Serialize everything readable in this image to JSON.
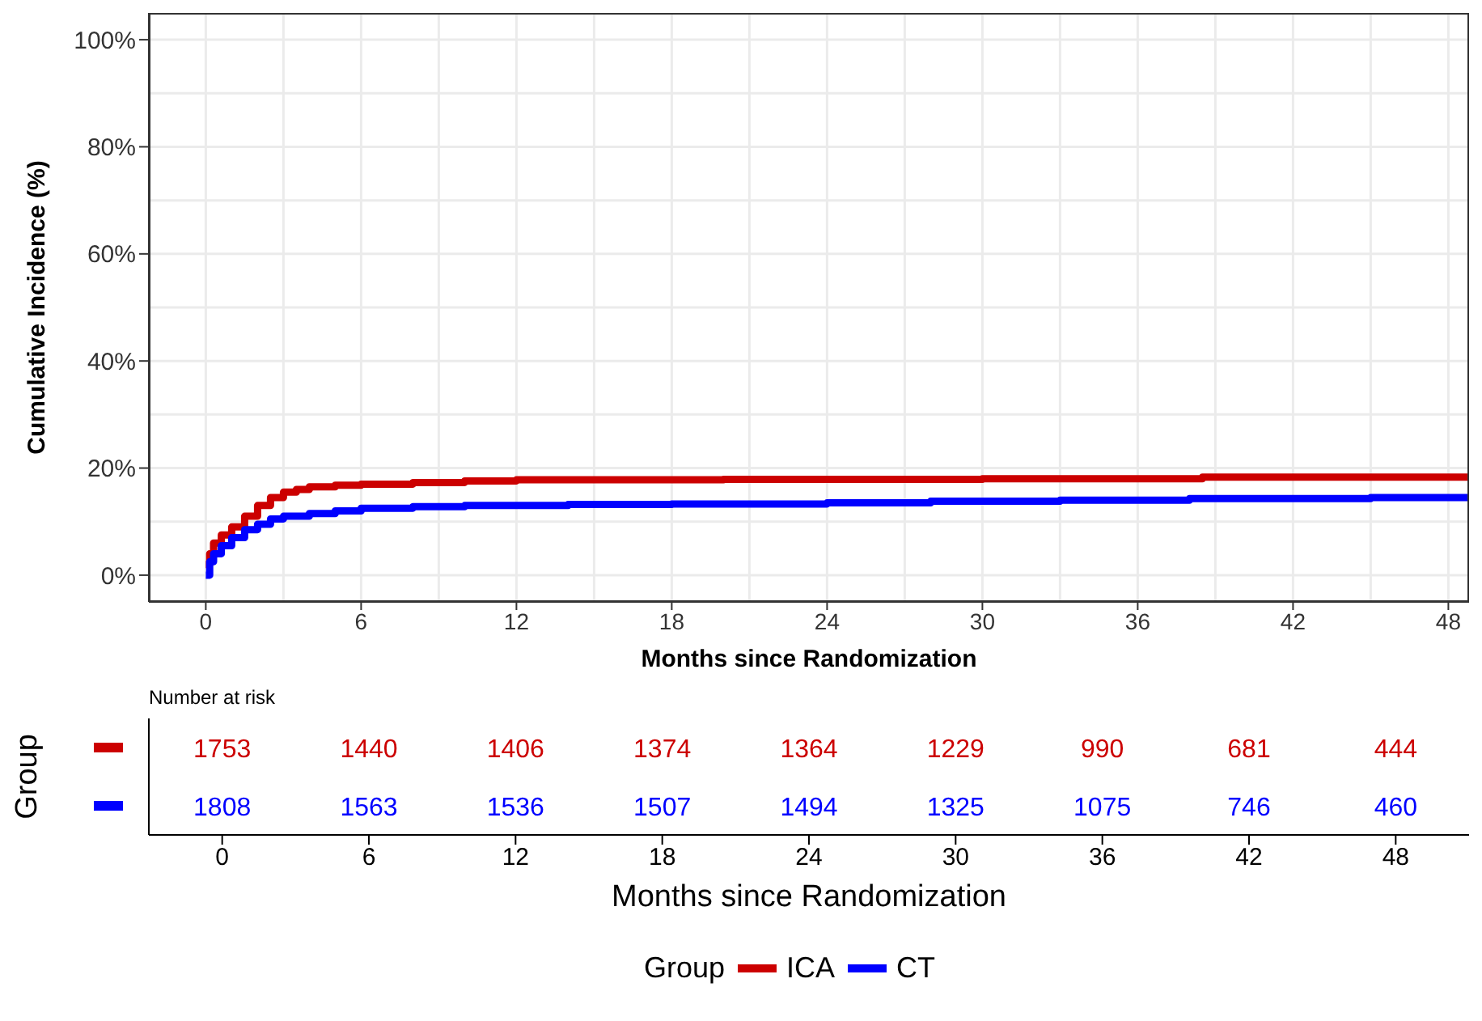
{
  "chart_data": [
    {
      "type": "step",
      "xlabel": "Months since Randomization",
      "ylabel": "Cumulative Incidence (%)",
      "xlim": [
        -2.2,
        48.8
      ],
      "ylim": [
        -5,
        105
      ],
      "xticks": [
        0,
        6,
        12,
        18,
        24,
        30,
        36,
        42,
        48
      ],
      "yticks": [
        {
          "value": 0,
          "label": "0%"
        },
        {
          "value": 20,
          "label": "20%"
        },
        {
          "value": 40,
          "label": "40%"
        },
        {
          "value": 60,
          "label": "60%"
        },
        {
          "value": 80,
          "label": "80%"
        },
        {
          "value": 100,
          "label": "100%"
        }
      ],
      "grid": true,
      "legend": "bottom",
      "legend_title": "Group",
      "line_style": "solid",
      "series": [
        {
          "name": "ICA",
          "color": "#cc0000",
          "x": [
            0,
            0.15,
            0.3,
            0.6,
            1,
            1.5,
            2,
            2.5,
            3,
            3.5,
            4,
            5,
            6,
            8,
            10,
            12,
            20,
            30,
            38.5,
            48.8
          ],
          "values": [
            2,
            4,
            6,
            7.5,
            9,
            11,
            13,
            14.5,
            15.5,
            16,
            16.5,
            16.8,
            17,
            17.3,
            17.6,
            17.8,
            17.9,
            18,
            18.3,
            18.3
          ]
        },
        {
          "name": "CT",
          "color": "#0000ff",
          "x": [
            0,
            0.15,
            0.3,
            0.6,
            1,
            1.5,
            2,
            2.5,
            3,
            4,
            5,
            6,
            8,
            10,
            14,
            18,
            24,
            28,
            33,
            38,
            45,
            48.8
          ],
          "values": [
            0,
            2.5,
            4,
            5.5,
            7,
            8.5,
            9.5,
            10.5,
            11,
            11.5,
            12,
            12.5,
            12.8,
            13,
            13.2,
            13.3,
            13.5,
            13.8,
            14,
            14.3,
            14.5,
            14.5
          ]
        }
      ]
    },
    {
      "type": "heatmap",
      "title": "Number at risk",
      "xlabel": "Months since Randomization",
      "ylabel": "Group",
      "categories": [
        "0",
        "6",
        "12",
        "18",
        "24",
        "30",
        "36",
        "42",
        "48"
      ],
      "y_categories": [
        null,
        null
      ],
      "data_labels": true,
      "colors": [
        "#cc0000",
        "#0000ff"
      ],
      "cells": [
        [
          1753,
          1440,
          1406,
          1374,
          1364,
          1229,
          990,
          681,
          444
        ],
        [
          1808,
          1563,
          1536,
          1507,
          1494,
          1325,
          1075,
          746,
          460
        ]
      ]
    }
  ]
}
